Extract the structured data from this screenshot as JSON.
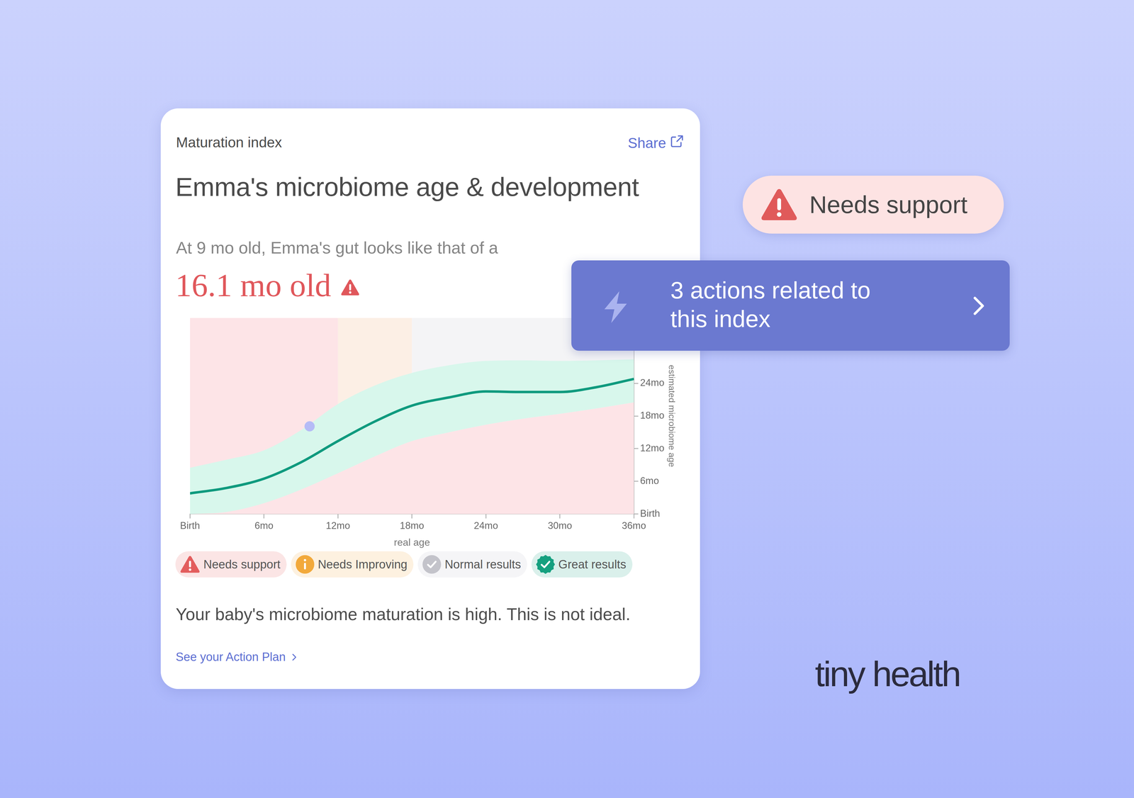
{
  "header": {
    "label": "Maturation index",
    "share": "Share",
    "title": "Emma's microbiome age & development"
  },
  "summary": {
    "intro": "At 9 mo old, Emma's gut looks like that of a",
    "result": "16.1 mo old"
  },
  "chart_data": {
    "type": "line",
    "x_label": "real age",
    "y_label": "estimated microbiome age",
    "xlim": [
      0,
      36
    ],
    "xticks": [
      {
        "value": 0,
        "label": "Birth"
      },
      {
        "value": 6,
        "label": "6mo"
      },
      {
        "value": 12,
        "label": "12mo"
      },
      {
        "value": 18,
        "label": "18mo"
      },
      {
        "value": 24,
        "label": "24mo"
      },
      {
        "value": 30,
        "label": "30mo"
      },
      {
        "value": 36,
        "label": "36mo"
      }
    ],
    "ylim": [
      0,
      36
    ],
    "yticks": [
      {
        "value": 0,
        "label": "Birth"
      },
      {
        "value": 6,
        "label": "6mo"
      },
      {
        "value": 12,
        "label": "12mo"
      },
      {
        "value": 18,
        "label": "18mo"
      },
      {
        "value": 24,
        "label": "24mo"
      }
    ],
    "grid": false,
    "x": [
      0,
      3,
      6,
      9,
      12,
      15,
      18,
      21,
      24,
      27,
      30,
      33,
      36
    ],
    "values": [
      3.8,
      4.8,
      6.5,
      9.5,
      13.4,
      17.0,
      19.9,
      21.4,
      22.5,
      22.4,
      22.4,
      23.3,
      24.8
    ],
    "color": "#0f9a7e",
    "band_upper": [
      8.5,
      10.0,
      11.7,
      15.4,
      20.2,
      23.6,
      25.9,
      27.3,
      28.1,
      28.2,
      28.1,
      28.2,
      28.4
    ],
    "band_lower": [
      0.0,
      0.4,
      2.0,
      4.5,
      7.5,
      10.6,
      13.4,
      15.0,
      16.4,
      17.5,
      18.4,
      19.4,
      20.5
    ],
    "band_color": "#d8f7ec",
    "below_band_color": "#fde4e7",
    "zones": [
      {
        "from": 0,
        "to": 12,
        "color": "#fde4e7"
      },
      {
        "from": 12,
        "to": 18,
        "color": "#fcefe5"
      },
      {
        "from": 18,
        "to": 36,
        "color": "#f4f4f6"
      }
    ],
    "points": [
      {
        "x": 9.7,
        "y": 16.1
      }
    ],
    "point_color": "#b5bbf6"
  },
  "legend_items": [
    {
      "label": "Needs support",
      "color": "#e35d5d"
    },
    {
      "label": "Needs Improving",
      "color": "#f2a93b"
    },
    {
      "label": "Normal results",
      "color": "#c3c3ca"
    },
    {
      "label": "Great results",
      "color": "#15a07f"
    }
  ],
  "message": "Your baby's microbiome maturation is high. This is not ideal.",
  "link": "See your Action Plan",
  "badge": "Needs support",
  "actions": [
    "3 actions related to",
    "this index"
  ],
  "brand": "tiny health"
}
